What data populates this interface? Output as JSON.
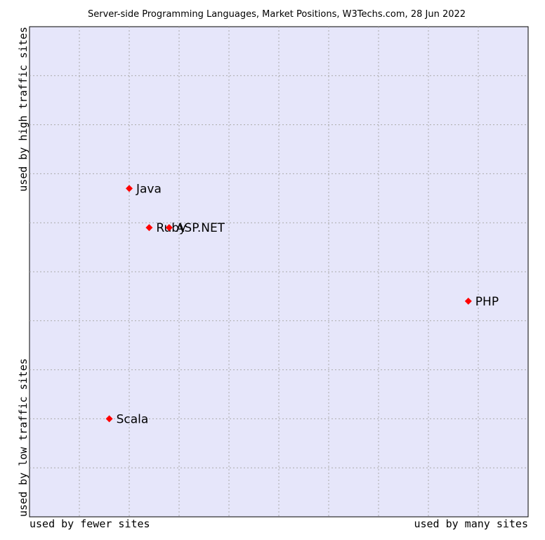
{
  "chart_data": {
    "type": "scatter",
    "title": "Server-side Programming Languages, Market Positions, W3Techs.com, 28 Jun 2022",
    "y_label_top": "used by high traffic sites",
    "y_label_bottom": "used by low traffic sites",
    "x_label_left": "used by fewer sites",
    "x_label_right": "used by many sites",
    "labels": [
      "Java",
      "Ruby",
      "ASP.NET",
      "PHP",
      "Scala"
    ],
    "x": [
      2.0,
      2.4,
      2.8,
      8.8,
      1.6
    ],
    "y": [
      6.7,
      5.9,
      5.9,
      4.4,
      2.0
    ],
    "color": "#ff0000",
    "xlim": [
      0,
      10
    ],
    "ylim": [
      0,
      10
    ],
    "xticks": [
      1,
      2,
      3,
      4,
      5,
      6,
      7,
      8,
      9
    ],
    "yticks": [
      1,
      2,
      3,
      4,
      5,
      6,
      7,
      8,
      9
    ],
    "grid": true
  }
}
